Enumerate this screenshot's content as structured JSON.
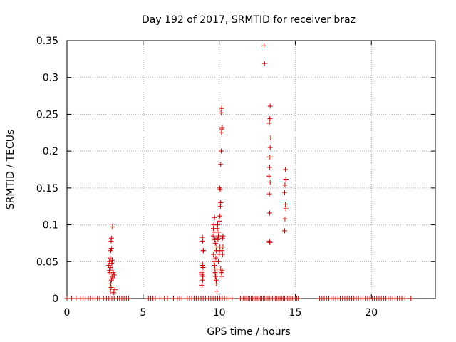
{
  "chart_data": {
    "type": "scatter",
    "title": "Day 192 of 2017, SRMTID for receiver braz",
    "xlabel": "GPS time / hours",
    "ylabel": "SRMTID / TECUs",
    "xlim": [
      0,
      24.2
    ],
    "ylim": [
      0,
      0.35
    ],
    "xticks": [
      0,
      5,
      10,
      15,
      20
    ],
    "xtick_labels": [
      "0",
      "5",
      "10",
      "15",
      "20"
    ],
    "yticks": [
      0,
      0.05,
      0.1,
      0.15,
      0.2,
      0.25,
      0.3,
      0.35
    ],
    "ytick_labels": [
      "0",
      "0.05",
      "0.1",
      "0.15",
      "0.2",
      "0.25",
      "0.3",
      "0.35"
    ],
    "grid": true,
    "marker": "+",
    "series": [
      {
        "name": "SRMTID",
        "color": "#cc0000",
        "points": [
          [
            2.75,
            0.045
          ],
          [
            2.78,
            0.038
          ],
          [
            2.8,
            0.05
          ],
          [
            2.82,
            0.035
          ],
          [
            2.84,
            0.055
          ],
          [
            2.86,
            0.042
          ],
          [
            2.88,
            0.065
          ],
          [
            2.9,
            0.078
          ],
          [
            2.92,
            0.082
          ],
          [
            2.93,
            0.068
          ],
          [
            2.95,
            0.048
          ],
          [
            2.97,
            0.052
          ],
          [
            2.99,
            0.097
          ],
          [
            2.88,
            0.02
          ],
          [
            2.9,
            0.015
          ],
          [
            2.92,
            0.025
          ],
          [
            2.86,
            0.01
          ],
          [
            2.96,
            0.03
          ],
          [
            3.0,
            0.04
          ],
          [
            3.05,
            0.035
          ],
          [
            3.1,
            0.032
          ],
          [
            3.15,
            0.012
          ],
          [
            3.02,
            0.028
          ],
          [
            3.08,
            0.008
          ],
          [
            8.9,
            0.083
          ],
          [
            8.92,
            0.078
          ],
          [
            8.95,
            0.065
          ],
          [
            8.97,
            0.065
          ],
          [
            8.9,
            0.047
          ],
          [
            8.92,
            0.045
          ],
          [
            8.94,
            0.042
          ],
          [
            8.88,
            0.035
          ],
          [
            8.9,
            0.032
          ],
          [
            8.93,
            0.03
          ],
          [
            8.88,
            0.018
          ],
          [
            8.92,
            0.025
          ],
          [
            9.6,
            0.085
          ],
          [
            9.62,
            0.095
          ],
          [
            9.65,
            0.1
          ],
          [
            9.67,
            0.09
          ],
          [
            9.7,
            0.11
          ],
          [
            9.72,
            0.08
          ],
          [
            9.75,
            0.075
          ],
          [
            9.63,
            0.06
          ],
          [
            9.66,
            0.05
          ],
          [
            9.69,
            0.045
          ],
          [
            9.72,
            0.04
          ],
          [
            9.74,
            0.035
          ],
          [
            9.77,
            0.03
          ],
          [
            9.8,
            0.025
          ],
          [
            9.82,
            0.02
          ],
          [
            9.85,
            0.01
          ],
          [
            9.78,
            0.055
          ],
          [
            9.8,
            0.065
          ],
          [
            9.83,
            0.07
          ],
          [
            9.86,
            0.082
          ],
          [
            9.88,
            0.095
          ],
          [
            9.9,
            0.1
          ],
          [
            9.92,
            0.08
          ],
          [
            9.95,
            0.085
          ],
          [
            9.98,
            0.09
          ],
          [
            10.0,
            0.06
          ],
          [
            10.02,
            0.065
          ],
          [
            10.05,
            0.07
          ],
          [
            10.0,
            0.105
          ],
          [
            10.05,
            0.112
          ],
          [
            10.08,
            0.125
          ],
          [
            10.1,
            0.13
          ],
          [
            10.03,
            0.15
          ],
          [
            10.07,
            0.148
          ],
          [
            10.1,
            0.182
          ],
          [
            10.13,
            0.2
          ],
          [
            10.15,
            0.225
          ],
          [
            10.18,
            0.23
          ],
          [
            10.2,
            0.232
          ],
          [
            10.12,
            0.252
          ],
          [
            10.16,
            0.258
          ],
          [
            10.2,
            0.065
          ],
          [
            10.22,
            0.06
          ],
          [
            10.25,
            0.07
          ],
          [
            10.1,
            0.04
          ],
          [
            10.15,
            0.035
          ],
          [
            10.18,
            0.03
          ],
          [
            10.2,
            0.038
          ],
          [
            10.22,
            0.082
          ],
          [
            10.25,
            0.085
          ],
          [
            9.7,
            0.045
          ],
          [
            9.75,
            0.03
          ],
          [
            9.85,
            0.04
          ],
          [
            9.95,
            0.05
          ],
          [
            12.95,
            0.343
          ],
          [
            12.98,
            0.319
          ],
          [
            13.35,
            0.261
          ],
          [
            13.33,
            0.244
          ],
          [
            13.3,
            0.238
          ],
          [
            13.38,
            0.218
          ],
          [
            13.35,
            0.205
          ],
          [
            13.3,
            0.192
          ],
          [
            13.4,
            0.192
          ],
          [
            13.32,
            0.178
          ],
          [
            13.28,
            0.166
          ],
          [
            13.35,
            0.158
          ],
          [
            13.3,
            0.142
          ],
          [
            13.32,
            0.116
          ],
          [
            13.3,
            0.078
          ],
          [
            13.33,
            0.076
          ],
          [
            14.35,
            0.175
          ],
          [
            14.38,
            0.162
          ],
          [
            14.32,
            0.154
          ],
          [
            14.3,
            0.144
          ],
          [
            14.35,
            0.128
          ],
          [
            14.38,
            0.122
          ],
          [
            14.32,
            0.108
          ],
          [
            14.3,
            0.092
          ]
        ],
        "zero_x": [
          0.0,
          0.3,
          0.6,
          0.9,
          1.05,
          1.2,
          1.4,
          1.55,
          1.7,
          1.85,
          2.0,
          2.15,
          2.4,
          2.6,
          2.75,
          2.95,
          3.1,
          3.3,
          3.45,
          3.6,
          3.75,
          3.9,
          4.05,
          5.35,
          5.5,
          5.65,
          5.8,
          6.1,
          6.4,
          6.6,
          7.0,
          7.25,
          7.4,
          7.55,
          7.9,
          8.05,
          8.2,
          8.35,
          8.5,
          8.65,
          8.8,
          8.95,
          9.1,
          9.3,
          9.45,
          9.6,
          9.75,
          9.9,
          10.05,
          10.2,
          10.35,
          10.5,
          10.65,
          10.85,
          11.4,
          11.5,
          11.6,
          11.7,
          11.8,
          11.9,
          12.0,
          12.1,
          12.2,
          12.3,
          12.4,
          12.5,
          12.6,
          12.7,
          12.8,
          12.9,
          13.0,
          13.1,
          13.2,
          13.3,
          13.4,
          13.5,
          13.6,
          13.7,
          13.8,
          13.9,
          14.0,
          14.1,
          14.2,
          14.3,
          14.4,
          14.5,
          14.6,
          14.7,
          14.8,
          14.9,
          15.0,
          15.1,
          15.2,
          16.6,
          16.75,
          16.9,
          17.05,
          17.2,
          17.35,
          17.5,
          17.65,
          17.8,
          17.95,
          18.1,
          18.25,
          18.4,
          18.55,
          18.7,
          18.85,
          19.0,
          19.15,
          19.3,
          19.45,
          19.6,
          19.75,
          19.9,
          20.05,
          20.2,
          20.35,
          20.5,
          20.65,
          20.8,
          20.95,
          21.1,
          21.25,
          21.4,
          21.55,
          21.7,
          21.85,
          22.0,
          22.2,
          22.6
        ]
      }
    ]
  }
}
